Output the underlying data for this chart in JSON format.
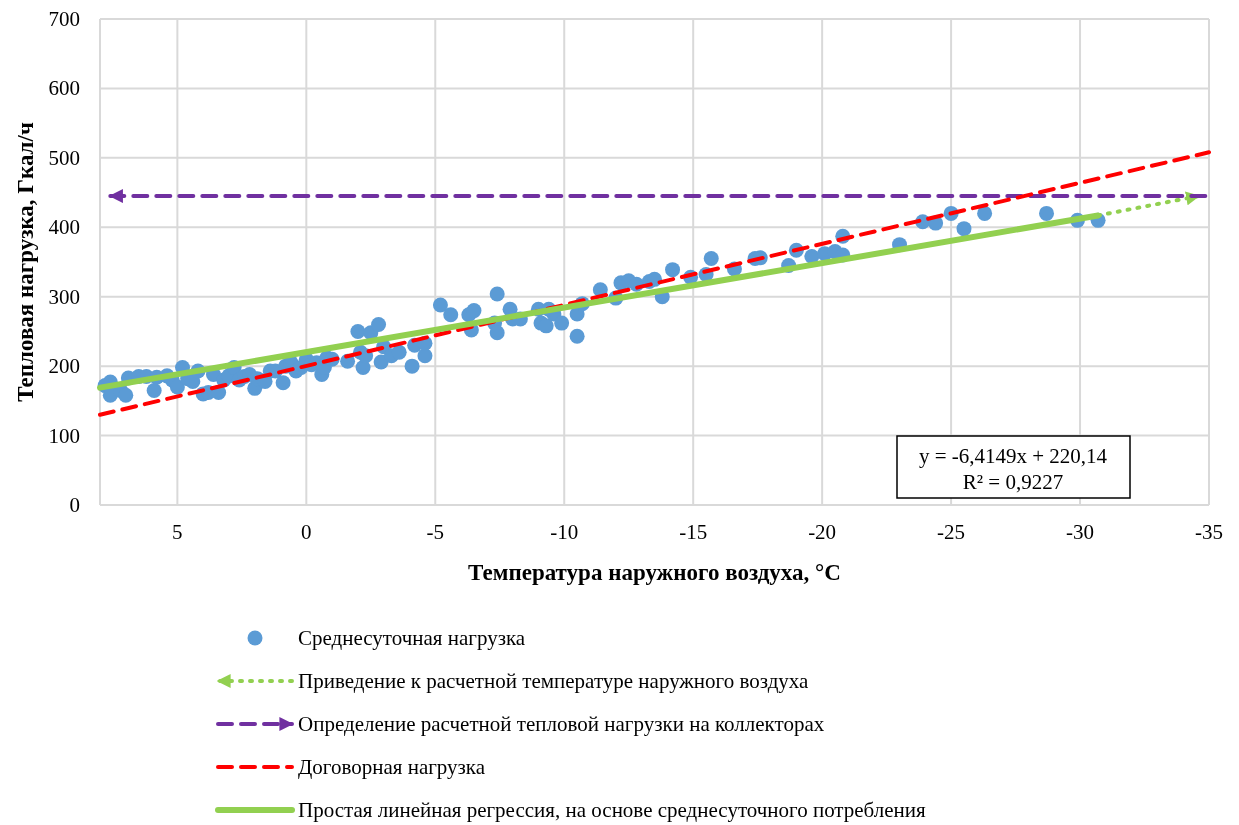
{
  "chart_data": {
    "type": "scatter",
    "xlabel": "Температура наружного воздуха, °C",
    "ylabel": "Тепловая нагрузка, Гкал/ч",
    "xlim": [
      8,
      -35
    ],
    "xticks": [
      5,
      0,
      -5,
      -10,
      -15,
      -20,
      -25,
      -30,
      -35
    ],
    "ylim": [
      0,
      700
    ],
    "yticks": [
      0,
      100,
      200,
      300,
      400,
      500,
      600,
      700
    ],
    "grid": true,
    "legend": "bottom",
    "annotations": [
      "y = -6,4149x + 220,14",
      "R² = 0,9227"
    ],
    "series": [
      {
        "name": "Среднесуточная нагрузка",
        "color": "#5b9bd5",
        "marker": "circle",
        "x": [
          7.8,
          7.6,
          7.6,
          7.2,
          7.0,
          6.9,
          6.5,
          6.2,
          5.9,
          5.8,
          5.4,
          5.2,
          5.0,
          4.8,
          4.6,
          4.4,
          4.2,
          4.0,
          3.8,
          3.6,
          3.4,
          3.2,
          3.0,
          2.8,
          2.6,
          2.4,
          2.2,
          2.0,
          1.9,
          1.6,
          1.4,
          1.2,
          0.9,
          0.8,
          0.6,
          0.4,
          0.2,
          0,
          -0.2,
          -0.4,
          -0.6,
          -0.7,
          -0.8,
          -1.0,
          -1.6,
          -2.0,
          -2.1,
          -2.2,
          -2.3,
          -2.5,
          -2.8,
          -2.9,
          -3.0,
          -3.3,
          -3.6,
          -4.1,
          -4.2,
          -4.6,
          -4.6,
          -5.2,
          -5.6,
          -6.3,
          -6.4,
          -6.5,
          -7.3,
          -7.4,
          -7.4,
          -7.9,
          -8.0,
          -8.3,
          -9.0,
          -9.1,
          -9.3,
          -9.4,
          -9.6,
          -9.9,
          -10.5,
          -10.5,
          -10.7,
          -11.4,
          -12.0,
          -12.2,
          -12.5,
          -12.8,
          -13.3,
          -13.5,
          -13.8,
          -14.2,
          -14.9,
          -15.5,
          -15.7,
          -16.6,
          -17.4,
          -17.6,
          -18.7,
          -19.0,
          -19.6,
          -20.1,
          -20.5,
          -20.8,
          -20.8,
          -23.0,
          -23.9,
          -24.4,
          -25.0,
          -25.5,
          -26.3,
          -28.7,
          -29.9,
          -30.7
        ],
        "values": [
          172,
          177,
          158,
          165,
          158,
          183,
          185,
          185,
          165,
          184,
          186,
          180,
          170,
          198,
          182,
          178,
          193,
          160,
          162,
          188,
          162,
          180,
          186,
          198,
          180,
          185,
          188,
          168,
          182,
          178,
          193,
          193,
          176,
          200,
          205,
          193,
          198,
          210,
          202,
          205,
          188,
          198,
          212,
          210,
          207,
          250,
          220,
          198,
          215,
          248,
          260,
          206,
          228,
          215,
          220,
          200,
          230,
          215,
          233,
          288,
          274,
          274,
          252,
          280,
          262,
          248,
          304,
          282,
          268,
          268,
          282,
          262,
          258,
          282,
          275,
          262,
          243,
          275,
          290,
          310,
          298,
          320,
          323,
          318,
          322,
          325,
          300,
          339,
          328,
          332,
          355,
          340,
          355,
          356,
          345,
          367,
          358,
          362,
          365,
          387,
          360,
          375,
          408,
          406,
          420,
          398,
          420,
          420,
          410,
          410
        ]
      },
      {
        "name": "Приведение к расчетной температуре наружного воздуха",
        "type": "line",
        "color": "#92d050",
        "line_style": "dotted",
        "x": [
          -30.7,
          -34.6
        ],
        "values": [
          417,
          445
        ]
      },
      {
        "name": "Определение расчетной тепловой нагрузки на коллекторах",
        "type": "line",
        "color": "#7030a0",
        "line_style": "dashed",
        "x": [
          7.6,
          -35
        ],
        "values": [
          445,
          445
        ]
      },
      {
        "name": "Договорная нагрузка",
        "type": "line",
        "color": "#ff0000",
        "line_style": "dashed",
        "x": [
          8,
          -35
        ],
        "values": [
          130,
          508
        ]
      },
      {
        "name": "Простая линейная регрессия, на основе среднесуточного потребления",
        "type": "line",
        "color": "#92d050",
        "line_style": "solid",
        "x": [
          8,
          -30.7
        ],
        "values": [
          169,
          417
        ]
      }
    ]
  }
}
